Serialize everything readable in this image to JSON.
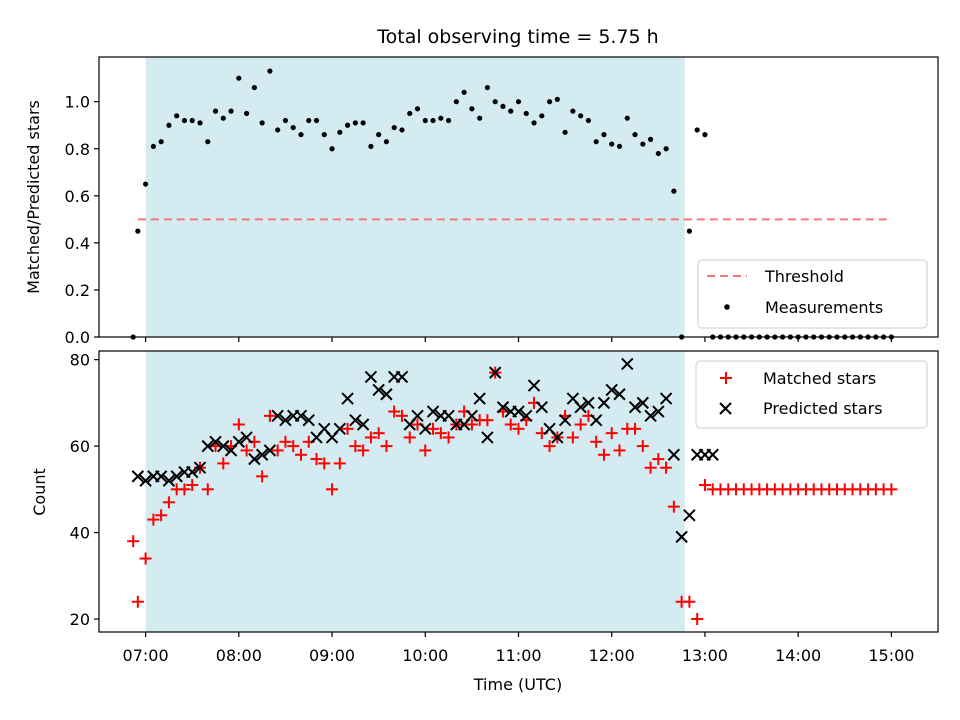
{
  "chart_data": [
    {
      "type": "scatter",
      "title": "Total observing time = 5.75 h",
      "ylabel": "Matched/Predicted stars",
      "xlim": [
        "06:30",
        "15:30"
      ],
      "ylim": [
        0,
        1.19
      ],
      "yticks": [
        "0.0",
        "0.2",
        "0.4",
        "0.6",
        "0.8",
        "1.0"
      ],
      "shaded_interval": [
        "07:00",
        "12:47"
      ],
      "shade_color": "#d3ebf1",
      "threshold": {
        "name": "Threshold",
        "value": 0.5,
        "x_range": [
          "06:55",
          "15:00"
        ],
        "color": "#f47a7a"
      },
      "legend": {
        "placement": "lower-right",
        "entries": [
          "Threshold",
          "Measurements"
        ]
      },
      "series": [
        {
          "name": "Measurements",
          "color": "#000000",
          "marker": "dot",
          "x": [
            "06:52",
            "06:55",
            "07:00",
            "07:05",
            "07:10",
            "07:15",
            "07:20",
            "07:25",
            "07:30",
            "07:35",
            "07:40",
            "07:45",
            "07:50",
            "07:55",
            "08:00",
            "08:05",
            "08:10",
            "08:15",
            "08:20",
            "08:25",
            "08:30",
            "08:35",
            "08:40",
            "08:45",
            "08:50",
            "08:55",
            "09:00",
            "09:05",
            "09:10",
            "09:15",
            "09:20",
            "09:25",
            "09:30",
            "09:35",
            "09:40",
            "09:45",
            "09:50",
            "09:55",
            "10:00",
            "10:05",
            "10:10",
            "10:15",
            "10:20",
            "10:25",
            "10:30",
            "10:35",
            "10:40",
            "10:45",
            "10:50",
            "10:55",
            "11:00",
            "11:05",
            "11:10",
            "11:15",
            "11:20",
            "11:25",
            "11:30",
            "11:35",
            "11:40",
            "11:45",
            "11:50",
            "11:55",
            "12:00",
            "12:05",
            "12:10",
            "12:15",
            "12:20",
            "12:25",
            "12:30",
            "12:35",
            "12:40",
            "12:45",
            "12:50",
            "12:55",
            "13:00",
            "13:05",
            "13:10",
            "13:15",
            "13:20",
            "13:25",
            "13:30",
            "13:35",
            "13:40",
            "13:45",
            "13:50",
            "13:55",
            "14:00",
            "14:05",
            "14:10",
            "14:15",
            "14:20",
            "14:25",
            "14:30",
            "14:35",
            "14:40",
            "14:45",
            "14:50",
            "14:55",
            "15:00"
          ],
          "y": [
            0.0,
            0.45,
            0.65,
            0.81,
            0.83,
            0.9,
            0.94,
            0.92,
            0.92,
            0.91,
            0.83,
            0.96,
            0.93,
            0.96,
            1.1,
            0.95,
            1.06,
            0.91,
            1.13,
            0.88,
            0.92,
            0.89,
            0.86,
            0.92,
            0.92,
            0.86,
            0.8,
            0.87,
            0.9,
            0.91,
            0.91,
            0.81,
            0.86,
            0.83,
            0.89,
            0.88,
            0.95,
            0.97,
            0.92,
            0.92,
            0.93,
            0.92,
            1.0,
            1.04,
            0.97,
            0.93,
            1.06,
            1.0,
            0.98,
            0.96,
            1.0,
            0.95,
            0.91,
            0.94,
            1.0,
            1.01,
            0.87,
            0.96,
            0.94,
            0.92,
            0.83,
            0.86,
            0.82,
            0.81,
            0.93,
            0.86,
            0.82,
            0.84,
            0.78,
            0.8,
            0.62,
            0.0,
            0.45,
            0.88,
            0.86,
            0.0,
            0.0,
            0.0,
            0.0,
            0.0,
            0.0,
            0.0,
            0.0,
            0.0,
            0.0,
            0.0,
            0.0,
            0.0,
            0.0,
            0.0,
            0.0,
            0.0,
            0.0,
            0.0,
            0.0,
            0.0,
            0.0,
            0.0,
            0.0
          ]
        }
      ]
    },
    {
      "type": "scatter",
      "xlabel": "Time (UTC)",
      "ylabel": "Count",
      "xlim": [
        "06:30",
        "15:30"
      ],
      "ylim": [
        17,
        82
      ],
      "xticks": [
        "07:00",
        "08:00",
        "09:00",
        "10:00",
        "11:00",
        "12:00",
        "13:00",
        "14:00",
        "15:00"
      ],
      "yticks": [
        "20",
        "40",
        "60",
        "80"
      ],
      "shaded_interval": [
        "07:00",
        "12:47"
      ],
      "shade_color": "#d3ebf1",
      "legend": {
        "placement": "upper-right",
        "entries": [
          "Matched stars",
          "Predicted stars"
        ]
      },
      "series": [
        {
          "name": "Matched stars",
          "color": "#ff0000",
          "marker": "plus",
          "x": [
            "06:52",
            "06:55",
            "07:00",
            "07:05",
            "07:10",
            "07:15",
            "07:20",
            "07:25",
            "07:30",
            "07:35",
            "07:40",
            "07:45",
            "07:50",
            "07:55",
            "08:00",
            "08:05",
            "08:10",
            "08:15",
            "08:20",
            "08:25",
            "08:30",
            "08:35",
            "08:40",
            "08:45",
            "08:50",
            "08:55",
            "09:00",
            "09:05",
            "09:10",
            "09:15",
            "09:20",
            "09:25",
            "09:30",
            "09:35",
            "09:40",
            "09:45",
            "09:50",
            "09:55",
            "10:00",
            "10:05",
            "10:10",
            "10:15",
            "10:20",
            "10:25",
            "10:30",
            "10:35",
            "10:40",
            "10:45",
            "10:50",
            "10:55",
            "11:00",
            "11:05",
            "11:10",
            "11:15",
            "11:20",
            "11:25",
            "11:30",
            "11:35",
            "11:40",
            "11:45",
            "11:50",
            "11:55",
            "12:00",
            "12:05",
            "12:10",
            "12:15",
            "12:20",
            "12:25",
            "12:30",
            "12:35",
            "12:40",
            "12:45",
            "12:50",
            "12:55",
            "13:00",
            "13:05",
            "13:10",
            "13:15",
            "13:20",
            "13:25",
            "13:30",
            "13:35",
            "13:40",
            "13:45",
            "13:50",
            "13:55",
            "14:00",
            "14:05",
            "14:10",
            "14:15",
            "14:20",
            "14:25",
            "14:30",
            "14:35",
            "14:40",
            "14:45",
            "14:50",
            "14:55",
            "15:00"
          ],
          "y": [
            38,
            24,
            34,
            43,
            44,
            47,
            50,
            50,
            51,
            55,
            50,
            60,
            56,
            60,
            65,
            59,
            61,
            53,
            67,
            59,
            61,
            60,
            58,
            61,
            57,
            56,
            50,
            56,
            64,
            60,
            59,
            62,
            63,
            60,
            68,
            67,
            62,
            65,
            59,
            64,
            63,
            62,
            65,
            68,
            65,
            66,
            66,
            77,
            68,
            65,
            64,
            66,
            70,
            63,
            60,
            62,
            67,
            62,
            65,
            67,
            61,
            58,
            63,
            59,
            64,
            64,
            60,
            55,
            57,
            55,
            46,
            24,
            24,
            20,
            51,
            50,
            50,
            50,
            50,
            50,
            50,
            50,
            50,
            50,
            50,
            50,
            50,
            50,
            50,
            50,
            50,
            50,
            50,
            50,
            50,
            50,
            50,
            50,
            50
          ]
        },
        {
          "name": "Predicted stars",
          "color": "#000000",
          "marker": "x",
          "x": [
            "06:55",
            "07:00",
            "07:05",
            "07:10",
            "07:15",
            "07:20",
            "07:25",
            "07:30",
            "07:35",
            "07:40",
            "07:45",
            "07:50",
            "07:55",
            "08:00",
            "08:05",
            "08:10",
            "08:15",
            "08:20",
            "08:25",
            "08:30",
            "08:35",
            "08:40",
            "08:45",
            "08:50",
            "08:55",
            "09:00",
            "09:05",
            "09:10",
            "09:15",
            "09:20",
            "09:25",
            "09:30",
            "09:35",
            "09:40",
            "09:45",
            "09:50",
            "09:55",
            "10:00",
            "10:05",
            "10:10",
            "10:15",
            "10:20",
            "10:25",
            "10:30",
            "10:35",
            "10:40",
            "10:45",
            "10:50",
            "10:55",
            "11:00",
            "11:05",
            "11:10",
            "11:15",
            "11:20",
            "11:25",
            "11:30",
            "11:35",
            "11:40",
            "11:45",
            "11:50",
            "11:55",
            "12:00",
            "12:05",
            "12:10",
            "12:15",
            "12:20",
            "12:25",
            "12:30",
            "12:35",
            "12:40",
            "12:45",
            "12:50",
            "12:55",
            "13:00",
            "13:05"
          ],
          "y": [
            53,
            52,
            53,
            53,
            52,
            53,
            54,
            54,
            55,
            60,
            61,
            60,
            59,
            61,
            62,
            57,
            58,
            59,
            67,
            66,
            67,
            67,
            66,
            62,
            64,
            62,
            64,
            71,
            66,
            65,
            76,
            73,
            72,
            76,
            76,
            65,
            67,
            64,
            68,
            67,
            67,
            65,
            65,
            67,
            71,
            62,
            77,
            69,
            68,
            68,
            67,
            74,
            69,
            64,
            62,
            66,
            71,
            69,
            70,
            66,
            70,
            73,
            72,
            79,
            69,
            70,
            67,
            68,
            71,
            58,
            39,
            44,
            58,
            58,
            58
          ]
        }
      ]
    }
  ]
}
